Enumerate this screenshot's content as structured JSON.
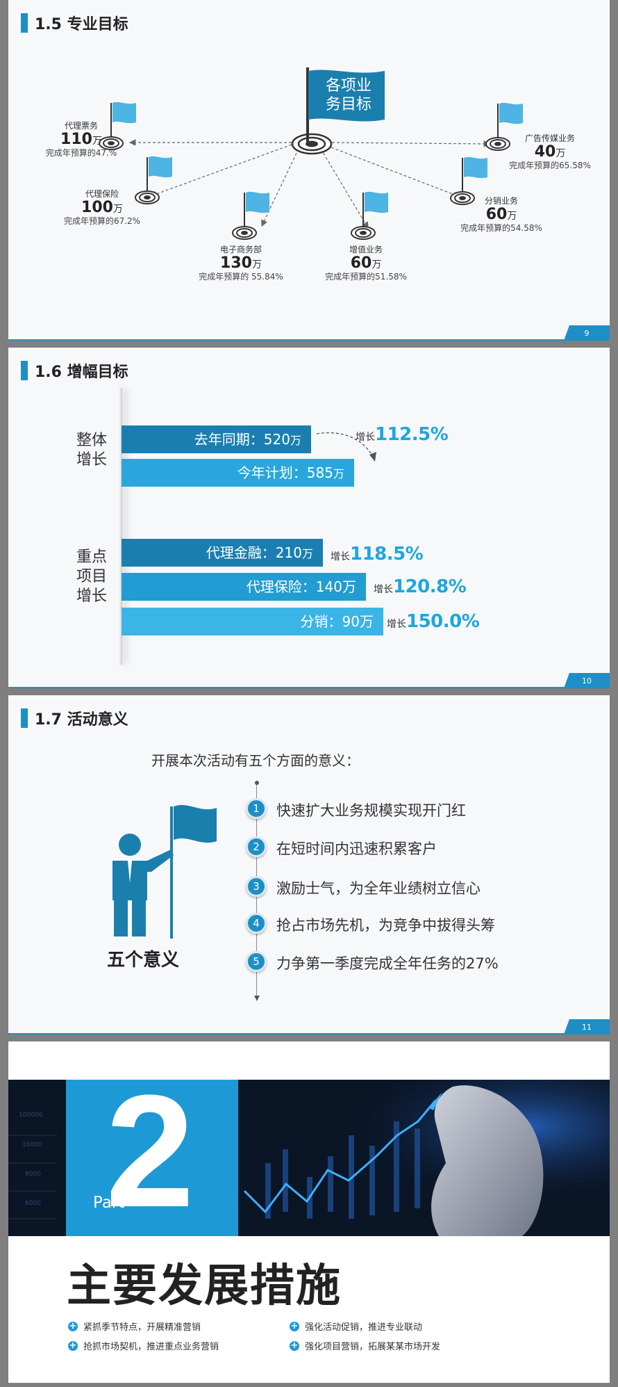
{
  "slide1": {
    "title": "1.5 专业目标",
    "center": [
      "各项业",
      "务目标"
    ],
    "goals": [
      {
        "name": "代理票务",
        "num": "110",
        "unit": "万",
        "rate": "完成年预算的47.%"
      },
      {
        "name": "代理保险",
        "num": "100",
        "unit": "万",
        "rate": "完成年预算的67.2%"
      },
      {
        "name": "电子商务部",
        "num": "130",
        "unit": "万",
        "rate": "完成年预算的 55.84%"
      },
      {
        "name": "增值业务",
        "num": "60",
        "unit": "万",
        "rate": "完成年预算的51.58%"
      },
      {
        "name": "分销业务",
        "num": "60",
        "unit": "万",
        "rate": "完成年预算的54.58%"
      },
      {
        "name": "广告传媒业务",
        "num": "40",
        "unit": "万",
        "rate": "完成年预算的65.58%"
      }
    ],
    "page": "9"
  },
  "slide2": {
    "title": "1.6 增幅目标",
    "group1": [
      "整体",
      "增长"
    ],
    "group2": [
      "重点",
      "项目",
      "增长"
    ],
    "bars": [
      {
        "label": "去年同期：520",
        "unit": "万",
        "color": "#1a7fb0"
      },
      {
        "label": "今年计划：585",
        "unit": "万",
        "color": "#2aa6dc"
      },
      {
        "label": "代理金融：210",
        "unit": "万",
        "color": "#1a7fb0"
      },
      {
        "label": "代理保险：140万",
        "unit": "",
        "color": "#229cd2"
      },
      {
        "label": "分销：90万",
        "unit": "",
        "color": "#3bb4e6"
      }
    ],
    "growths": [
      {
        "prefix": "增长",
        "value": "112.5%"
      },
      {
        "prefix": "增长",
        "value": "118.5%"
      },
      {
        "prefix": "增长",
        "value": "120.8%"
      },
      {
        "prefix": "增长",
        "value": "150.0%"
      }
    ],
    "page": "10"
  },
  "slide3": {
    "title": "1.7 活动意义",
    "intro": "开展本次活动有五个方面的意义：",
    "points": [
      {
        "n": "1",
        "text": "快速扩大业务规模实现开门红"
      },
      {
        "n": "2",
        "text": "在短时间内迅速积累客户"
      },
      {
        "n": "3",
        "text": "激励士气，为全年业绩树立信心"
      },
      {
        "n": "4",
        "text": "抢占市场先机，为竞争中拔得头筹"
      },
      {
        "n": "5",
        "text": "力争第一季度完成全年任务的27%"
      }
    ],
    "caption": "五个意义",
    "page": "11"
  },
  "slide4": {
    "part_label": "Part",
    "part_num": "2",
    "axis_ticks": [
      "100000",
      "10000",
      "8000",
      "6000"
    ],
    "title": "主要发展措施",
    "bullets": [
      "紧抓季节特点，开展精准营销",
      "强化活动促销，推进专业联动",
      "抢抓市场契机，推进重点业务营销",
      "强化项目营销，拓展某某市场开发"
    ]
  },
  "colors": {
    "accent": "#1d8fc6",
    "highlight": "#1da6dd"
  }
}
